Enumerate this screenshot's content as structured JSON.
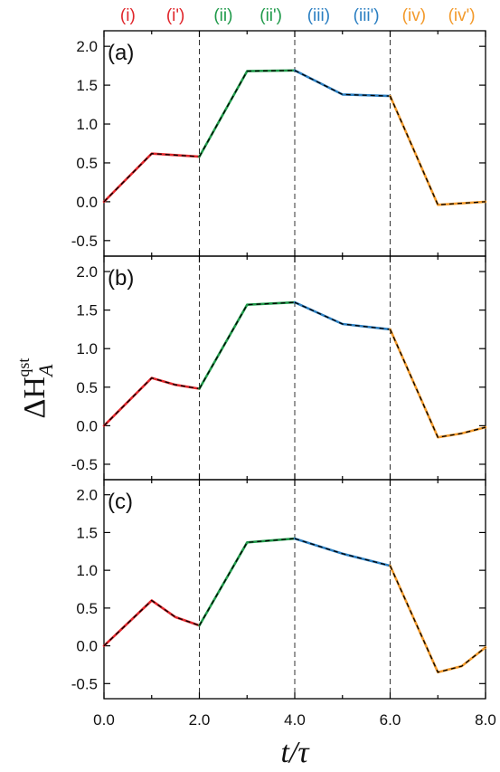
{
  "chart_data": {
    "type": "line",
    "xlabel": "t/τ",
    "ylabel": {
      "main": "ΔH",
      "sub": "A",
      "sup": "qst"
    },
    "xlim": [
      0,
      8
    ],
    "ylim": [
      -0.7,
      2.2
    ],
    "x_ticks": [
      "0.0",
      "2.0",
      "4.0",
      "6.0",
      "8.0"
    ],
    "y_ticks": [
      "-0.5",
      "0.0",
      "0.5",
      "1.0",
      "1.5",
      "2.0"
    ],
    "vlines": [
      2,
      4,
      6
    ],
    "phase_labels": [
      {
        "text": "(i)",
        "x": 0.5,
        "color": "#e0262b"
      },
      {
        "text": "(i')",
        "x": 1.5,
        "color": "#e0262b"
      },
      {
        "text": "(ii)",
        "x": 2.5,
        "color": "#1f9a4a"
      },
      {
        "text": "(ii')",
        "x": 3.5,
        "color": "#1f9a4a"
      },
      {
        "text": "(iii)",
        "x": 4.5,
        "color": "#2b7fc2"
      },
      {
        "text": "(iii')",
        "x": 5.5,
        "color": "#2b7fc2"
      },
      {
        "text": "(iv)",
        "x": 6.5,
        "color": "#f39a2b"
      },
      {
        "text": "(iv')",
        "x": 7.5,
        "color": "#f39a2b"
      }
    ],
    "segment_colors": [
      "#e0262b",
      "#1f9a4a",
      "#2b7fc2",
      "#f39a2b"
    ],
    "panels": [
      {
        "label": "(a)",
        "x": [
          0,
          1,
          2,
          3,
          4,
          5,
          6,
          7,
          8
        ],
        "y": [
          0.0,
          0.62,
          0.58,
          1.68,
          1.69,
          1.38,
          1.36,
          -0.04,
          0.0
        ]
      },
      {
        "label": "(b)",
        "x": [
          0,
          1,
          1.5,
          2,
          3,
          4,
          5,
          6,
          7,
          7.5,
          8
        ],
        "y": [
          0.0,
          0.62,
          0.53,
          0.48,
          1.57,
          1.6,
          1.32,
          1.25,
          -0.15,
          -0.1,
          -0.02
        ]
      },
      {
        "label": "(c)",
        "x": [
          0,
          1,
          1.5,
          2,
          3,
          4,
          5,
          6,
          7,
          7.5,
          8
        ],
        "y": [
          0.0,
          0.6,
          0.38,
          0.27,
          1.37,
          1.42,
          1.22,
          1.06,
          -0.35,
          -0.27,
          -0.02
        ]
      }
    ]
  }
}
